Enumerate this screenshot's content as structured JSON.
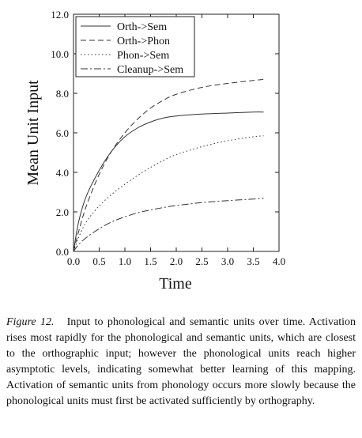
{
  "chart_data": {
    "type": "line",
    "title": "",
    "xlabel": "Time",
    "ylabel": "Mean Unit Input",
    "xlim": [
      0.0,
      4.0
    ],
    "ylim": [
      0.0,
      12.0
    ],
    "xticks": [
      "0.0",
      "0.5",
      "1.0",
      "1.5",
      "2.0",
      "2.5",
      "3.0",
      "3.5",
      "4.0"
    ],
    "yticks": [
      "0.0",
      "2.0",
      "4.0",
      "6.0",
      "8.0",
      "10.0",
      "12.0"
    ],
    "grid": false,
    "legend_position": "top-left",
    "x": [
      0.0,
      0.1,
      0.25,
      0.5,
      0.75,
      1.0,
      1.25,
      1.5,
      1.75,
      2.0,
      2.5,
      3.0,
      3.5,
      3.7
    ],
    "series": [
      {
        "name": "Orth->Sem",
        "style": "solid",
        "values": [
          0.0,
          1.5,
          2.8,
          4.1,
          5.1,
          5.8,
          6.25,
          6.55,
          6.75,
          6.85,
          6.95,
          7.0,
          7.05,
          7.05
        ]
      },
      {
        "name": "Orth->Phon",
        "style": "dashed",
        "values": [
          0.0,
          1.0,
          2.3,
          3.9,
          5.1,
          6.0,
          6.7,
          7.25,
          7.65,
          7.95,
          8.3,
          8.5,
          8.65,
          8.7
        ]
      },
      {
        "name": "Phon->Sem",
        "style": "dotted",
        "values": [
          0.0,
          0.7,
          1.5,
          2.3,
          2.9,
          3.4,
          3.85,
          4.25,
          4.6,
          4.9,
          5.3,
          5.6,
          5.8,
          5.85
        ]
      },
      {
        "name": "Cleanup->Sem",
        "style": "dashdot",
        "values": [
          0.0,
          0.35,
          0.7,
          1.15,
          1.5,
          1.75,
          1.95,
          2.1,
          2.22,
          2.32,
          2.47,
          2.57,
          2.65,
          2.68
        ]
      }
    ]
  },
  "caption": {
    "label": "Figure 12.",
    "text": "Input to phonological and semantic units over time. Activation rises most rapidly for the phonological and semantic units, which are closest to the orthographic input; however the phonological units reach higher asymptotic levels, indicating somewhat better learning of this mapping. Activation of semantic units from phonology occurs more slowly because the phonological units must first be activated sufficiently by orthography."
  }
}
